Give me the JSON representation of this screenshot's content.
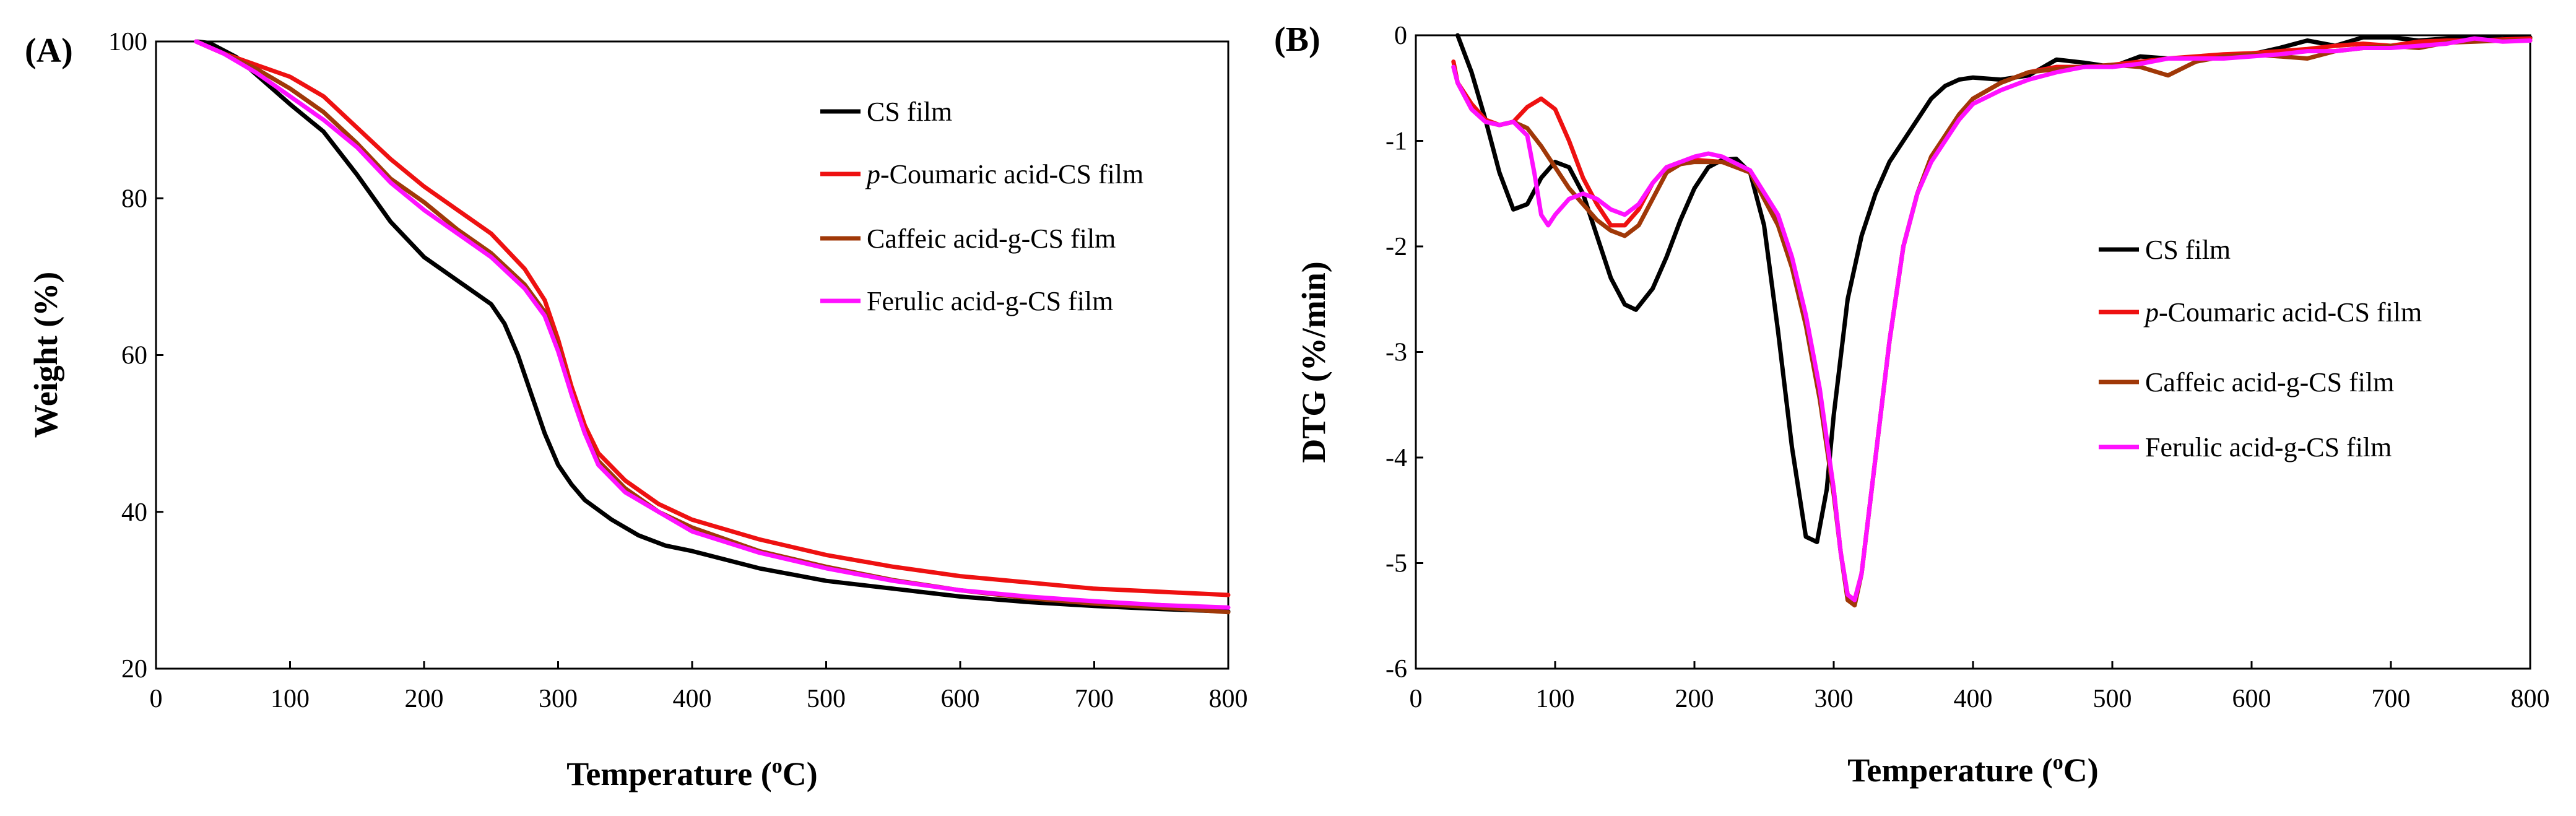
{
  "chart_data": [
    {
      "type": "line",
      "label": "(A)",
      "xlabel_main": "Temperature (",
      "xlabel_sup": "o",
      "xlabel_end": "C)",
      "ylabel": "Weight (%)",
      "xlim": [
        0,
        800
      ],
      "ylim": [
        20,
        100
      ],
      "xticks": [
        "0",
        "100",
        "200",
        "300",
        "400",
        "500",
        "600",
        "700",
        "800"
      ],
      "yticks": [
        "20",
        "40",
        "60",
        "80",
        "100"
      ],
      "legend_position": "upper-right",
      "series": [
        {
          "name": "CS film",
          "prefix": "",
          "text": "CS film",
          "color": "#000000",
          "x": [
            30,
            40,
            60,
            80,
            100,
            125,
            150,
            175,
            200,
            225,
            250,
            260,
            270,
            280,
            290,
            300,
            310,
            320,
            340,
            360,
            380,
            400,
            450,
            500,
            550,
            600,
            650,
            700,
            750,
            800
          ],
          "y": [
            100,
            99.8,
            98,
            95,
            92,
            88.5,
            83,
            77,
            72.5,
            69.5,
            66.5,
            64,
            60,
            55,
            50,
            46,
            43.5,
            41.5,
            39,
            37,
            35.7,
            35,
            32.8,
            31.2,
            30.2,
            29.2,
            28.5,
            28,
            27.6,
            27.3
          ]
        },
        {
          "name": "p-Coumaric acid-CS film",
          "prefix": "p",
          "text": "-Coumaric acid-CS film",
          "color": "#ee1111",
          "x": [
            30,
            50,
            75,
            100,
            125,
            150,
            175,
            200,
            225,
            250,
            275,
            290,
            300,
            310,
            320,
            330,
            350,
            375,
            400,
            450,
            500,
            550,
            600,
            650,
            700,
            750,
            800
          ],
          "y": [
            100,
            98.5,
            97,
            95.5,
            93,
            89,
            85,
            81.5,
            78.5,
            75.5,
            71,
            67,
            62,
            56,
            51,
            47.5,
            44,
            41,
            39,
            36.5,
            34.5,
            33,
            31.8,
            31,
            30.2,
            29.8,
            29.4
          ]
        },
        {
          "name": "Caffeic acid-g-CS film",
          "prefix": "",
          "text": "Caffeic acid-g-CS film",
          "color": "#a03808",
          "x": [
            30,
            50,
            75,
            100,
            125,
            150,
            175,
            200,
            225,
            250,
            275,
            290,
            300,
            310,
            320,
            330,
            350,
            375,
            400,
            450,
            500,
            550,
            600,
            650,
            700,
            750,
            800
          ],
          "y": [
            100,
            98.5,
            96.5,
            94,
            91,
            87,
            82.5,
            79.5,
            76,
            73,
            69,
            65.5,
            61,
            55,
            50,
            46.5,
            43,
            40,
            38,
            35,
            33,
            31.3,
            30,
            29,
            28.3,
            27.8,
            27.2
          ]
        },
        {
          "name": "Ferulic acid-g-CS film",
          "prefix": "",
          "text": "Ferulic acid-g-CS film",
          "color": "#ff11ff",
          "x": [
            30,
            50,
            75,
            100,
            125,
            150,
            175,
            200,
            225,
            250,
            275,
            290,
            300,
            310,
            320,
            330,
            350,
            375,
            400,
            450,
            500,
            550,
            600,
            650,
            700,
            750,
            800
          ],
          "y": [
            100,
            98.5,
            96,
            93,
            90,
            86.5,
            82,
            78.5,
            75.5,
            72.5,
            68.5,
            65,
            60.5,
            55,
            50,
            46,
            42.5,
            40,
            37.5,
            34.8,
            32.8,
            31.2,
            30,
            29.2,
            28.6,
            28.1,
            27.8
          ]
        }
      ]
    },
    {
      "type": "line",
      "label": "(B)",
      "xlabel_main": "Temperature (",
      "xlabel_sup": "o",
      "xlabel_end": "C)",
      "ylabel": "DTG (%/min)",
      "xlim": [
        0,
        800
      ],
      "ylim": [
        -6,
        0
      ],
      "xticks": [
        "0",
        "100",
        "200",
        "300",
        "400",
        "500",
        "600",
        "700",
        "800"
      ],
      "yticks": [
        "-6",
        "-5",
        "-4",
        "-3",
        "-2",
        "-1",
        "0"
      ],
      "legend_position": "center-right",
      "series": [
        {
          "name": "CS film",
          "prefix": "",
          "text": "CS film",
          "color": "#000000",
          "x": [
            30,
            40,
            50,
            60,
            70,
            80,
            90,
            100,
            110,
            120,
            130,
            140,
            150,
            158,
            170,
            180,
            190,
            200,
            210,
            220,
            230,
            240,
            250,
            260,
            270,
            280,
            288,
            295,
            300,
            310,
            320,
            330,
            340,
            350,
            360,
            370,
            380,
            390,
            400,
            420,
            440,
            460,
            480,
            500,
            520,
            540,
            560,
            580,
            600,
            620,
            640,
            660,
            680,
            700,
            720,
            740,
            760,
            780,
            800
          ],
          "y": [
            0.05,
            -0.35,
            -0.8,
            -1.3,
            -1.65,
            -1.6,
            -1.35,
            -1.2,
            -1.25,
            -1.5,
            -1.9,
            -2.3,
            -2.55,
            -2.6,
            -2.4,
            -2.1,
            -1.75,
            -1.45,
            -1.25,
            -1.18,
            -1.17,
            -1.3,
            -1.8,
            -2.8,
            -3.9,
            -4.75,
            -4.8,
            -4.3,
            -3.6,
            -2.5,
            -1.9,
            -1.5,
            -1.2,
            -1.0,
            -0.8,
            -0.6,
            -0.48,
            -0.42,
            -0.4,
            -0.42,
            -0.38,
            -0.23,
            -0.26,
            -0.3,
            -0.2,
            -0.22,
            -0.22,
            -0.2,
            -0.18,
            -0.12,
            -0.05,
            -0.1,
            -0.02,
            -0.02,
            -0.05,
            -0.03,
            -0.02,
            -0.03,
            -0.02
          ]
        },
        {
          "name": "p-Coumaric acid-CS film",
          "prefix": "p",
          "text": "-Coumaric acid-CS film",
          "color": "#ee1111",
          "x": [
            27,
            30,
            40,
            50,
            60,
            70,
            80,
            90,
            100,
            110,
            120,
            130,
            140,
            150,
            160,
            170,
            180,
            190,
            200,
            220,
            240,
            260,
            270,
            280,
            290,
            300,
            305,
            310,
            315,
            320,
            330,
            340,
            350,
            360,
            370,
            380,
            390,
            400,
            420,
            440,
            460,
            480,
            500,
            520,
            540,
            560,
            580,
            600,
            620,
            640,
            660,
            680,
            700,
            720,
            740,
            760,
            780,
            800
          ],
          "y": [
            -0.25,
            -0.45,
            -0.65,
            -0.8,
            -0.85,
            -0.82,
            -0.68,
            -0.6,
            -0.7,
            -1.0,
            -1.35,
            -1.6,
            -1.8,
            -1.8,
            -1.65,
            -1.4,
            -1.25,
            -1.2,
            -1.18,
            -1.2,
            -1.3,
            -1.75,
            -2.15,
            -2.7,
            -3.4,
            -4.3,
            -4.9,
            -5.3,
            -5.35,
            -5.1,
            -4.0,
            -2.9,
            -2.0,
            -1.5,
            -1.15,
            -0.95,
            -0.75,
            -0.6,
            -0.45,
            -0.35,
            -0.3,
            -0.3,
            -0.28,
            -0.25,
            -0.22,
            -0.2,
            -0.18,
            -0.17,
            -0.15,
            -0.13,
            -0.1,
            -0.08,
            -0.1,
            -0.06,
            -0.05,
            -0.05,
            -0.04,
            -0.03
          ]
        },
        {
          "name": "Caffeic acid-g-CS film",
          "prefix": "",
          "text": "Caffeic acid-g-CS film",
          "color": "#a03808",
          "x": [
            27,
            30,
            40,
            50,
            60,
            70,
            80,
            90,
            100,
            110,
            120,
            130,
            140,
            150,
            160,
            170,
            180,
            190,
            200,
            220,
            240,
            260,
            270,
            280,
            290,
            300,
            305,
            310,
            315,
            320,
            330,
            340,
            350,
            360,
            370,
            380,
            390,
            400,
            420,
            440,
            460,
            480,
            500,
            520,
            540,
            560,
            580,
            600,
            620,
            640,
            660,
            680,
            700,
            720,
            740,
            760,
            780,
            800
          ],
          "y": [
            -0.3,
            -0.45,
            -0.7,
            -0.82,
            -0.85,
            -0.82,
            -0.88,
            -1.05,
            -1.25,
            -1.45,
            -1.6,
            -1.75,
            -1.85,
            -1.9,
            -1.8,
            -1.55,
            -1.3,
            -1.22,
            -1.2,
            -1.2,
            -1.3,
            -1.8,
            -2.2,
            -2.75,
            -3.45,
            -4.35,
            -4.9,
            -5.35,
            -5.4,
            -5.1,
            -4.0,
            -2.9,
            -2.0,
            -1.5,
            -1.15,
            -0.95,
            -0.75,
            -0.6,
            -0.45,
            -0.35,
            -0.32,
            -0.3,
            -0.28,
            -0.3,
            -0.38,
            -0.25,
            -0.2,
            -0.18,
            -0.2,
            -0.22,
            -0.15,
            -0.12,
            -0.1,
            -0.12,
            -0.07,
            -0.06,
            -0.05,
            -0.05
          ]
        },
        {
          "name": "Ferulic acid-g-CS film",
          "prefix": "",
          "text": "Ferulic acid-g-CS film",
          "color": "#ff11ff",
          "x": [
            27,
            30,
            40,
            50,
            60,
            70,
            80,
            85,
            90,
            95,
            100,
            110,
            120,
            130,
            140,
            150,
            160,
            170,
            180,
            190,
            200,
            210,
            220,
            240,
            260,
            270,
            280,
            290,
            300,
            305,
            310,
            315,
            320,
            330,
            340,
            350,
            360,
            370,
            380,
            390,
            400,
            420,
            440,
            460,
            480,
            500,
            520,
            540,
            560,
            580,
            600,
            620,
            640,
            660,
            680,
            700,
            720,
            740,
            760,
            780,
            800
          ],
          "y": [
            -0.3,
            -0.45,
            -0.7,
            -0.82,
            -0.85,
            -0.82,
            -0.95,
            -1.3,
            -1.7,
            -1.8,
            -1.7,
            -1.55,
            -1.5,
            -1.55,
            -1.65,
            -1.7,
            -1.6,
            -1.4,
            -1.25,
            -1.2,
            -1.15,
            -1.12,
            -1.15,
            -1.28,
            -1.7,
            -2.1,
            -2.65,
            -3.35,
            -4.3,
            -4.9,
            -5.3,
            -5.35,
            -5.1,
            -4.0,
            -2.9,
            -2.0,
            -1.5,
            -1.2,
            -1.0,
            -0.8,
            -0.65,
            -0.52,
            -0.42,
            -0.35,
            -0.3,
            -0.3,
            -0.27,
            -0.22,
            -0.22,
            -0.22,
            -0.2,
            -0.18,
            -0.15,
            -0.15,
            -0.12,
            -0.12,
            -0.1,
            -0.08,
            -0.03,
            -0.06,
            -0.05
          ]
        }
      ]
    }
  ]
}
